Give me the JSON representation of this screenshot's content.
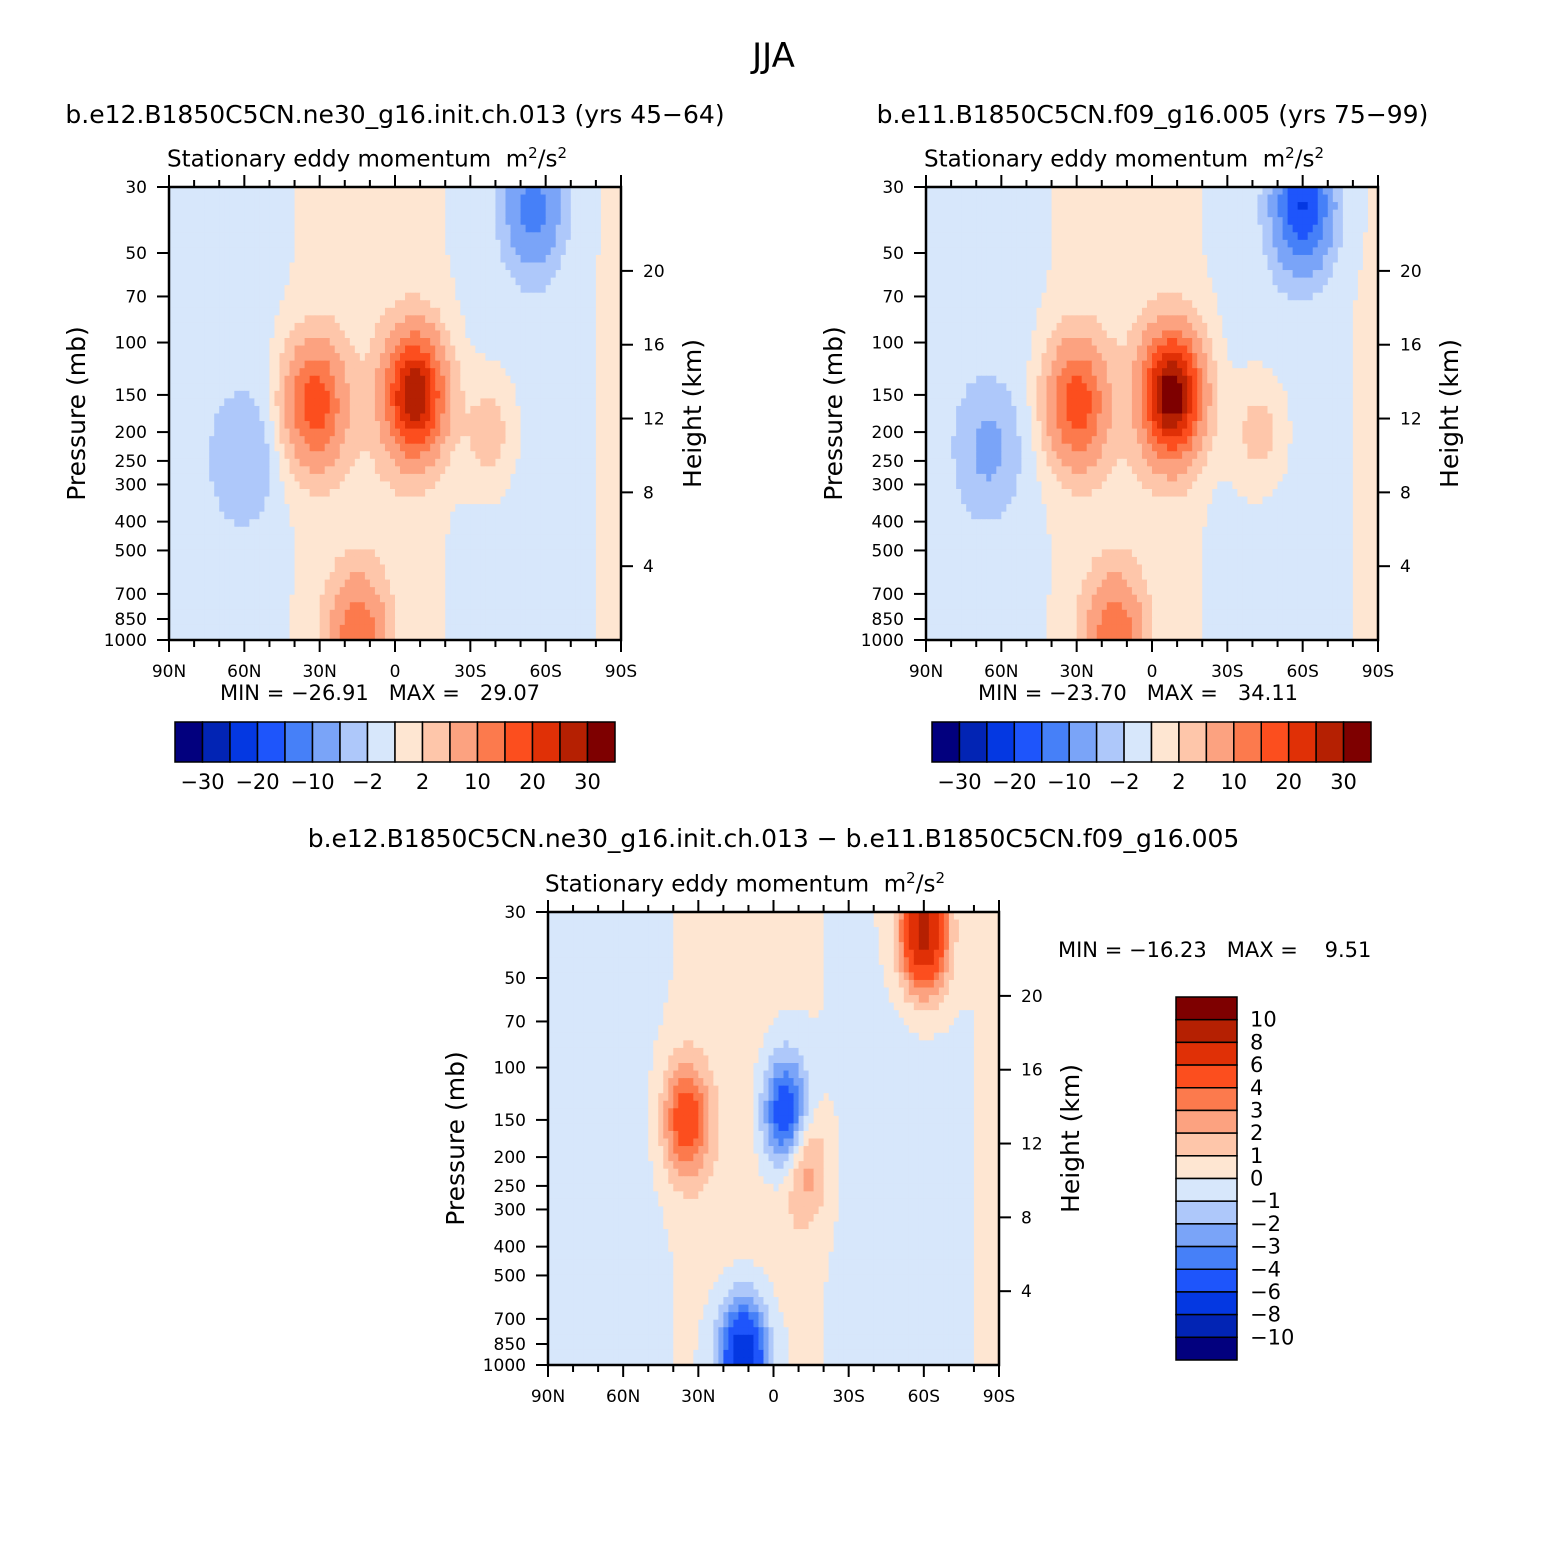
{
  "title": "JJA",
  "subtitle": "Stationary eddy momentum",
  "units": "m²/s²",
  "units_base": "m",
  "units_exp": "2",
  "units_div": "/s",
  "ylabel_left": "Pressure (mb)",
  "ylabel_right": "Height (km)",
  "pressure_ticks": [
    "30",
    "50",
    "70",
    "100",
    "150",
    "200",
    "250",
    "300",
    "400",
    "500",
    "700",
    "850",
    "1000"
  ],
  "pressure_values": [
    30,
    50,
    70,
    100,
    150,
    200,
    250,
    300,
    400,
    500,
    700,
    850,
    1000
  ],
  "height_ticks": [
    "4",
    "8",
    "12",
    "16",
    "20"
  ],
  "height_values": [
    4,
    8,
    12,
    16,
    20
  ],
  "lat_ticks": [
    "90N",
    "60N",
    "30N",
    "0",
    "30S",
    "60S",
    "90S"
  ],
  "panels": [
    {
      "title": "b.e12.B1850C5CN.ne30_g16.init.ch.013 (yrs 45-64)",
      "min_label": "MIN =",
      "min_value": "-26.91",
      "max_label": "MAX =",
      "max_value": "29.07"
    },
    {
      "title": "b.e11.B1850C5CN.f09_g16.005 (yrs 75-99)",
      "min_label": "MIN =",
      "min_value": "-23.70",
      "max_label": "MAX =",
      "max_value": "34.11"
    },
    {
      "title": "b.e12.B1850C5CN.ne30_g16.init.ch.013 - b.e11.B1850C5CN.f09_g16.005",
      "min_label": "MIN =",
      "min_value": "-16.23",
      "max_label": "MAX =",
      "max_value": "9.51"
    }
  ],
  "colorbar_top": {
    "labels": [
      "-30",
      "-20",
      "-10",
      "-2",
      "2",
      "10",
      "20",
      "30"
    ],
    "levels": [
      -30,
      -25,
      -20,
      -15,
      -10,
      -5,
      -2,
      0,
      2,
      5,
      10,
      15,
      20,
      25,
      30
    ],
    "colors": [
      "#02007e",
      "#0224b4",
      "#0438e2",
      "#1e55fb",
      "#4680f8",
      "#7aa4f8",
      "#aec8fa",
      "#d7e7fb",
      "#fee6d2",
      "#fec6aa",
      "#fca280",
      "#fc7a4d",
      "#fc4e1e",
      "#e03006",
      "#b52002",
      "#7e0000"
    ]
  },
  "colorbar_diff": {
    "labels": [
      "10",
      "8",
      "6",
      "4",
      "3",
      "2",
      "1",
      "0",
      "-1",
      "-2",
      "-3",
      "-4",
      "-6",
      "-8",
      "-10"
    ],
    "colors": [
      "#7e0000",
      "#b52002",
      "#e03006",
      "#fc4e1e",
      "#fc7a4d",
      "#fca280",
      "#fec6aa",
      "#fee6d2",
      "#d7e7fb",
      "#aec8fa",
      "#7aa4f8",
      "#4680f8",
      "#1e55fb",
      "#0438e2",
      "#0224b4",
      "#02007e"
    ]
  },
  "chart_data": [
    {
      "type": "heatmap",
      "title": "b.e12.B1850C5CN.ne30_g16.init.ch.013 (yrs 45-64)",
      "subtitle": "Stationary eddy momentum m²/s²",
      "xlabel": "",
      "ylabel": "Pressure (mb)",
      "ylabel_right": "Height (km)",
      "x_range": [
        "90N",
        "90S"
      ],
      "y_range_mb": [
        1000,
        30
      ],
      "y_scale": "log",
      "min": -26.91,
      "max": 29.07,
      "features": [
        {
          "lat": -8,
          "p": 150,
          "value": 29
        },
        {
          "lat": 32,
          "p": 160,
          "value": 18
        },
        {
          "lat": -55,
          "p": 35,
          "value": -12
        },
        {
          "lat": 15,
          "p": 980,
          "value": 14
        },
        {
          "lat": 60,
          "p": 250,
          "value": -4
        },
        {
          "lat": -38,
          "p": 200,
          "value": 4
        }
      ]
    },
    {
      "type": "heatmap",
      "title": "b.e11.B1850C5CN.f09_g16.005 (yrs 75-99)",
      "subtitle": "Stationary eddy momentum m²/s²",
      "xlabel": "",
      "ylabel": "Pressure (mb)",
      "ylabel_right": "Height (km)",
      "x_range": [
        "90N",
        "90S"
      ],
      "y_range_mb": [
        1000,
        30
      ],
      "y_scale": "log",
      "min": -23.7,
      "max": 34.11,
      "features": [
        {
          "lat": -8,
          "p": 150,
          "value": 34
        },
        {
          "lat": 30,
          "p": 160,
          "value": 18
        },
        {
          "lat": -60,
          "p": 35,
          "value": -20
        },
        {
          "lat": 15,
          "p": 980,
          "value": 14
        },
        {
          "lat": 65,
          "p": 230,
          "value": -5
        },
        {
          "lat": -43,
          "p": 200,
          "value": 4
        }
      ]
    },
    {
      "type": "heatmap",
      "title": "b.e12.B1850C5CN.ne30_g16.init.ch.013 - b.e11.B1850C5CN.f09_g16.005",
      "subtitle": "Stationary eddy momentum m²/s²",
      "xlabel": "",
      "ylabel": "Pressure (mb)",
      "ylabel_right": "Height (km)",
      "x_range": [
        "90N",
        "90S"
      ],
      "y_range_mb": [
        1000,
        30
      ],
      "y_scale": "log",
      "min": -16.23,
      "max": 9.51,
      "features": [
        {
          "lat": -60,
          "p": 35,
          "value": 9
        },
        {
          "lat": 35,
          "p": 150,
          "value": 5
        },
        {
          "lat": -5,
          "p": 145,
          "value": -6
        },
        {
          "lat": -12,
          "p": 210,
          "value": 3
        },
        {
          "lat": 12,
          "p": 960,
          "value": -8
        }
      ]
    }
  ]
}
